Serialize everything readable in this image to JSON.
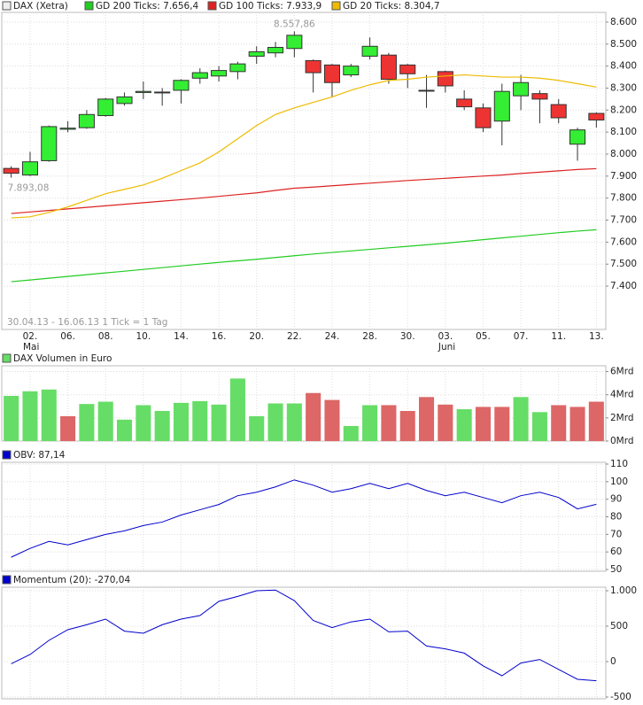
{
  "chart_data": [
    {
      "type": "candlestick",
      "categories": [
        null,
        "02.",
        null,
        "06.",
        null,
        "08.",
        null,
        "10.",
        null,
        "14.",
        null,
        "16.",
        null,
        "20.",
        null,
        "22.",
        null,
        "24.",
        null,
        "28.",
        null,
        "30.",
        null,
        "03.",
        null,
        "05.",
        null,
        "07.",
        null,
        "11.",
        null,
        "13."
      ],
      "months": [
        null,
        "Mai",
        null,
        null,
        null,
        null,
        null,
        null,
        null,
        null,
        null,
        null,
        null,
        null,
        null,
        null,
        null,
        null,
        null,
        null,
        null,
        null,
        null,
        "Juni",
        null,
        null,
        null,
        null,
        null,
        null,
        null,
        null
      ],
      "candles": {
        "name": "DAX (Xetra)",
        "up_color": "#33ee33",
        "down_color": "#ee3333",
        "open": [
          7935,
          7905,
          7970,
          8113,
          8120,
          8175,
          8230,
          8280,
          8278,
          8290,
          8345,
          8355,
          8375,
          8445,
          8460,
          8480,
          8425,
          8405,
          8360,
          8445,
          8450,
          8405,
          8290,
          8375,
          8250,
          8210,
          8150,
          8265,
          8275,
          8225,
          8045,
          8185
        ],
        "high": [
          7945,
          8010,
          8130,
          8150,
          8200,
          8255,
          8280,
          8330,
          8300,
          8340,
          8390,
          8400,
          8420,
          8490,
          8510,
          8557.86,
          8430,
          8410,
          8410,
          8530,
          8460,
          8410,
          8360,
          8380,
          8290,
          8230,
          8320,
          8360,
          8290,
          8250,
          8120,
          8190
        ],
        "low": [
          7893.08,
          7900,
          7965,
          8100,
          8115,
          8170,
          8220,
          8250,
          8220,
          8230,
          8320,
          8330,
          8340,
          8410,
          8440,
          8440,
          8280,
          8260,
          8350,
          8430,
          8320,
          8300,
          8210,
          8280,
          8200,
          8100,
          8040,
          8200,
          8140,
          8140,
          7970,
          8120
        ],
        "close": [
          7913,
          7965,
          8125,
          8118,
          8180,
          8250,
          8260,
          8285,
          8282,
          8335,
          8370,
          8380,
          8410,
          8465,
          8485,
          8540,
          8370,
          8325,
          8400,
          8490,
          8340,
          8365,
          8286,
          8310,
          8215,
          8120,
          8285,
          8325,
          8250,
          8165,
          8110,
          8155
        ]
      },
      "series": [
        {
          "name": "GD 200 Ticks: 7.656,4",
          "color": "#22cc22",
          "values": [
            7420,
            7428,
            7436,
            7444,
            7452,
            7460,
            7468,
            7476,
            7484,
            7492,
            7500,
            7508,
            7515,
            7522,
            7530,
            7538,
            7546,
            7553,
            7560,
            7567,
            7574,
            7581,
            7588,
            7595,
            7603,
            7611,
            7619,
            7627,
            7635,
            7643,
            7650,
            7656.4
          ]
        },
        {
          "name": "GD 100 Ticks: 7.933,9",
          "color": "#dd2222",
          "values": [
            7730,
            7737,
            7744,
            7751,
            7758,
            7765,
            7772,
            7779,
            7786,
            7793,
            7800,
            7808,
            7816,
            7824,
            7835,
            7845,
            7850,
            7856,
            7862,
            7868,
            7874,
            7880,
            7885,
            7890,
            7895,
            7900,
            7905,
            7912,
            7918,
            7924,
            7930,
            7933.9
          ]
        },
        {
          "name": "GD 20 Ticks: 8.304,7",
          "color": "#eebb00",
          "values": [
            7710,
            7715,
            7735,
            7760,
            7790,
            7820,
            7840,
            7860,
            7890,
            7925,
            7960,
            8010,
            8070,
            8130,
            8180,
            8210,
            8235,
            8260,
            8290,
            8315,
            8335,
            8340,
            8350,
            8355,
            8360,
            8355,
            8350,
            8350,
            8345,
            8335,
            8320,
            8304.7
          ]
        }
      ],
      "high_label": "8.557,86",
      "low_label": "7.893,08",
      "range_note": "30.04.13 - 16.06.13   1 Tick = 1 Tag",
      "ylim": [
        7203,
        8644
      ],
      "yticks": [
        {
          "value": 7400,
          "label": "7.400"
        },
        {
          "value": 7500,
          "label": "7.500"
        },
        {
          "value": 7600,
          "label": "7.600"
        },
        {
          "value": 7700,
          "label": "7.700"
        },
        {
          "value": 7800,
          "label": "7.800"
        },
        {
          "value": 7900,
          "label": "7.900"
        },
        {
          "value": 8000,
          "label": "8.000"
        },
        {
          "value": 8100,
          "label": "8.100"
        },
        {
          "value": 8200,
          "label": "8.200"
        },
        {
          "value": 8300,
          "label": "8.300"
        },
        {
          "value": 8400,
          "label": "8.400"
        },
        {
          "value": 8500,
          "label": "8.500"
        },
        {
          "value": 8600,
          "label": "8.600"
        }
      ],
      "grid": true
    },
    {
      "type": "bar",
      "title": "DAX Volumen in Euro",
      "color": "#66dd66",
      "values": [
        3.9,
        4.3,
        4.45,
        2.15,
        3.2,
        3.4,
        1.85,
        3.1,
        2.6,
        3.3,
        3.45,
        3.15,
        5.4,
        2.15,
        3.25,
        3.25,
        4.15,
        3.55,
        1.3,
        3.1,
        3.1,
        2.6,
        3.8,
        3.15,
        2.75,
        2.95,
        2.95,
        3.8,
        2.5,
        3.1,
        2.95,
        3.4
      ],
      "colors": [
        "#66dd66",
        "#66dd66",
        "#66dd66",
        "#dd6666",
        "#66dd66",
        "#66dd66",
        "#66dd66",
        "#66dd66",
        "#66dd66",
        "#66dd66",
        "#66dd66",
        "#66dd66",
        "#66dd66",
        "#66dd66",
        "#66dd66",
        "#66dd66",
        "#dd6666",
        "#dd6666",
        "#66dd66",
        "#66dd66",
        "#dd6666",
        "#dd6666",
        "#dd6666",
        "#dd6666",
        "#66dd66",
        "#dd6666",
        "#dd6666",
        "#66dd66",
        "#66dd66",
        "#dd6666",
        "#dd6666",
        "#dd6666"
      ],
      "ylim": [
        0,
        6.5
      ],
      "yticks": [
        {
          "value": 0,
          "label": "0Mrd"
        },
        {
          "value": 2,
          "label": "2Mrd"
        },
        {
          "value": 4,
          "label": "4Mrd"
        },
        {
          "value": 6,
          "label": "6Mrd"
        }
      ],
      "grid": true
    },
    {
      "type": "line",
      "title": "OBV: 87,14",
      "color": "#0000cc",
      "values": [
        57,
        62,
        66,
        64,
        67,
        70,
        72,
        75,
        77,
        81,
        84,
        87,
        92,
        94,
        97,
        101,
        98,
        94,
        96,
        99,
        96,
        99,
        95,
        92,
        94,
        91,
        88,
        92,
        94,
        91,
        84.5,
        87.14
      ],
      "ylim": [
        49,
        111
      ],
      "yticks": [
        50,
        60,
        70,
        80,
        90,
        100,
        110
      ],
      "grid": true
    },
    {
      "type": "line",
      "title": "Momentum (20): -270,04",
      "color": "#0000cc",
      "values": [
        -30,
        100,
        300,
        450,
        520,
        600,
        430,
        400,
        520,
        600,
        650,
        850,
        920,
        1000,
        1010,
        860,
        580,
        480,
        560,
        600,
        420,
        430,
        220,
        180,
        120,
        -60,
        -200,
        -20,
        30,
        -110,
        -250,
        -270.04
      ],
      "ylim": [
        -525,
        1050
      ],
      "yticks": [
        {
          "value": 1000,
          "label": "1.000"
        },
        500,
        0,
        -500
      ],
      "grid": true
    }
  ]
}
